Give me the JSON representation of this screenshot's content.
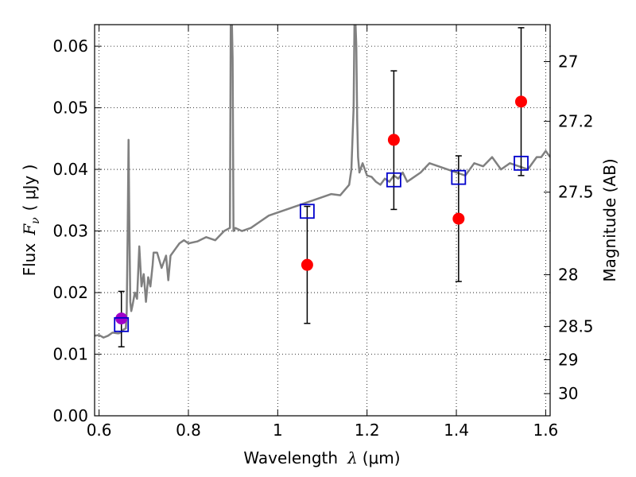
{
  "chart_data": {
    "type": "scatter",
    "title": "",
    "xlabel": "Wavelength",
    "xlabel_symbol": "λ",
    "xlabel_unit": "(μm)",
    "ylabel": "Flux",
    "ylabel_symbol": "F",
    "ylabel_subscript": "ν",
    "ylabel_unit": "( μJy )",
    "y2label": "Magnitude (AB)",
    "xlim": [
      0.59,
      1.61
    ],
    "ylim": [
      0.0,
      0.0635
    ],
    "grid": true,
    "x_ticks": [
      0.6,
      0.8,
      1.0,
      1.2,
      1.4,
      1.6
    ],
    "x_tick_labels": [
      "0.6",
      "0.8",
      "1",
      "1.2",
      "1.4",
      "1.6"
    ],
    "y_ticks": [
      0.0,
      0.01,
      0.02,
      0.03,
      0.04,
      0.05,
      0.06
    ],
    "y_tick_labels": [
      "0.00",
      "0.01",
      "0.02",
      "0.03",
      "0.04",
      "0.05",
      "0.06"
    ],
    "y2_ticks": [
      {
        "label": "27",
        "flux": 0.0575
      },
      {
        "label": "27.2",
        "flux": 0.0478
      },
      {
        "label": "27.5",
        "flux": 0.0363
      },
      {
        "label": "28",
        "flux": 0.0229
      },
      {
        "label": "28.5",
        "flux": 0.0145
      },
      {
        "label": "29",
        "flux": 0.0091
      },
      {
        "label": "30",
        "flux": 0.0036
      }
    ],
    "series": [
      {
        "kind": "line",
        "color": "#808080",
        "x": [
          0.59,
          0.6,
          0.61,
          0.62,
          0.63,
          0.64,
          0.645,
          0.65,
          0.655,
          0.66,
          0.662,
          0.664,
          0.666,
          0.668,
          0.67,
          0.672,
          0.675,
          0.68,
          0.685,
          0.69,
          0.695,
          0.7,
          0.705,
          0.71,
          0.715,
          0.72,
          0.722,
          0.73,
          0.74,
          0.75,
          0.755,
          0.76,
          0.77,
          0.78,
          0.79,
          0.8,
          0.82,
          0.84,
          0.86,
          0.88,
          0.893,
          0.895,
          0.897,
          0.899,
          0.901,
          0.905,
          0.92,
          0.94,
          0.96,
          0.98,
          1.0,
          1.02,
          1.04,
          1.06,
          1.08,
          1.1,
          1.12,
          1.14,
          1.16,
          1.165,
          1.17,
          1.172,
          1.174,
          1.176,
          1.178,
          1.18,
          1.183,
          1.19,
          1.2,
          1.21,
          1.22,
          1.23,
          1.24,
          1.25,
          1.26,
          1.27,
          1.28,
          1.29,
          1.3,
          1.32,
          1.34,
          1.36,
          1.38,
          1.4,
          1.42,
          1.44,
          1.46,
          1.48,
          1.5,
          1.52,
          1.54,
          1.56,
          1.58,
          1.59,
          1.6,
          1.61
        ],
        "y": [
          0.013,
          0.0131,
          0.0127,
          0.013,
          0.0135,
          0.0134,
          0.0134,
          0.0136,
          0.014,
          0.0142,
          0.017,
          0.03,
          0.0448,
          0.03,
          0.0185,
          0.017,
          0.018,
          0.02,
          0.019,
          0.0275,
          0.021,
          0.023,
          0.0185,
          0.0225,
          0.021,
          0.0245,
          0.0265,
          0.0265,
          0.024,
          0.026,
          0.022,
          0.026,
          0.027,
          0.028,
          0.0285,
          0.028,
          0.0283,
          0.029,
          0.0285,
          0.03,
          0.0305,
          0.065,
          0.065,
          0.058,
          0.03,
          0.0305,
          0.03,
          0.0305,
          0.0315,
          0.0325,
          0.033,
          0.0335,
          0.034,
          0.0345,
          0.035,
          0.0355,
          0.036,
          0.0358,
          0.0375,
          0.04,
          0.05,
          0.064,
          0.064,
          0.06,
          0.048,
          0.042,
          0.0395,
          0.041,
          0.039,
          0.0388,
          0.038,
          0.0375,
          0.0385,
          0.038,
          0.039,
          0.0385,
          0.0395,
          0.038,
          0.0385,
          0.0395,
          0.041,
          0.0405,
          0.04,
          0.0395,
          0.039,
          0.041,
          0.0405,
          0.042,
          0.04,
          0.041,
          0.0405,
          0.04,
          0.042,
          0.042,
          0.043,
          0.042
        ]
      },
      {
        "kind": "points",
        "marker": "circle",
        "color": "#ff0000",
        "x": [
          1.066,
          1.26,
          1.405,
          1.545
        ],
        "y": [
          0.0245,
          0.0448,
          0.032,
          0.051
        ],
        "yerr_low": [
          0.015,
          0.0335,
          0.0218,
          0.039
        ],
        "yerr_high": [
          0.034,
          0.056,
          0.0422,
          0.063
        ]
      },
      {
        "kind": "points",
        "marker": "circle",
        "color": "#a000c8",
        "x": [
          0.65
        ],
        "y": [
          0.0158
        ],
        "yerr_low": [
          0.0112
        ],
        "yerr_high": [
          0.0202
        ]
      },
      {
        "kind": "points",
        "marker": "open-square",
        "color": "#0000cc",
        "x": [
          0.65,
          1.066,
          1.26,
          1.405,
          1.545
        ],
        "y": [
          0.0148,
          0.0332,
          0.0383,
          0.0387,
          0.041
        ]
      }
    ]
  }
}
